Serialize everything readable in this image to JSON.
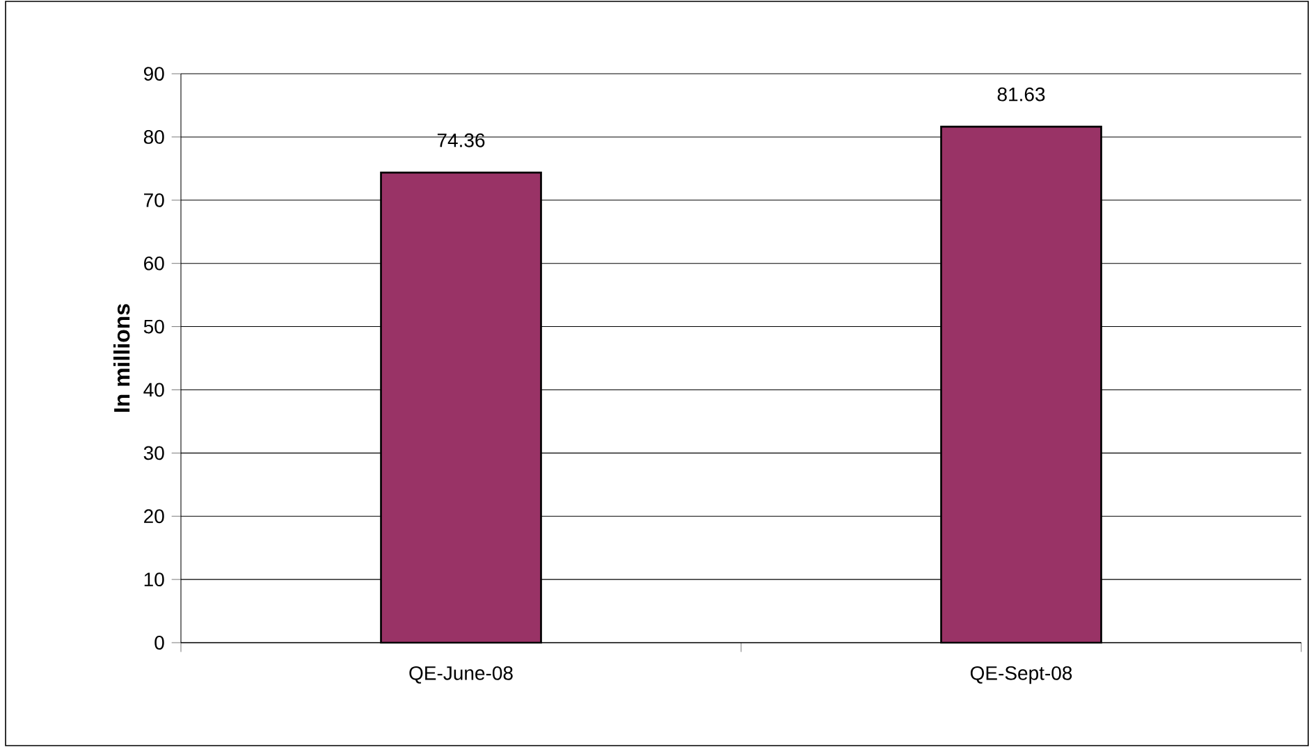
{
  "chart_data": {
    "type": "bar",
    "ylabel": "In millions",
    "categories": [
      "QE-June-08",
      "QE-Sept-08"
    ],
    "values": [
      74.36,
      81.63
    ],
    "color": "#993366",
    "ylim": [
      0,
      90
    ],
    "yticks": [
      0,
      10,
      20,
      30,
      40,
      50,
      60,
      70,
      80,
      90
    ],
    "grid": "y",
    "data_labels": true
  }
}
